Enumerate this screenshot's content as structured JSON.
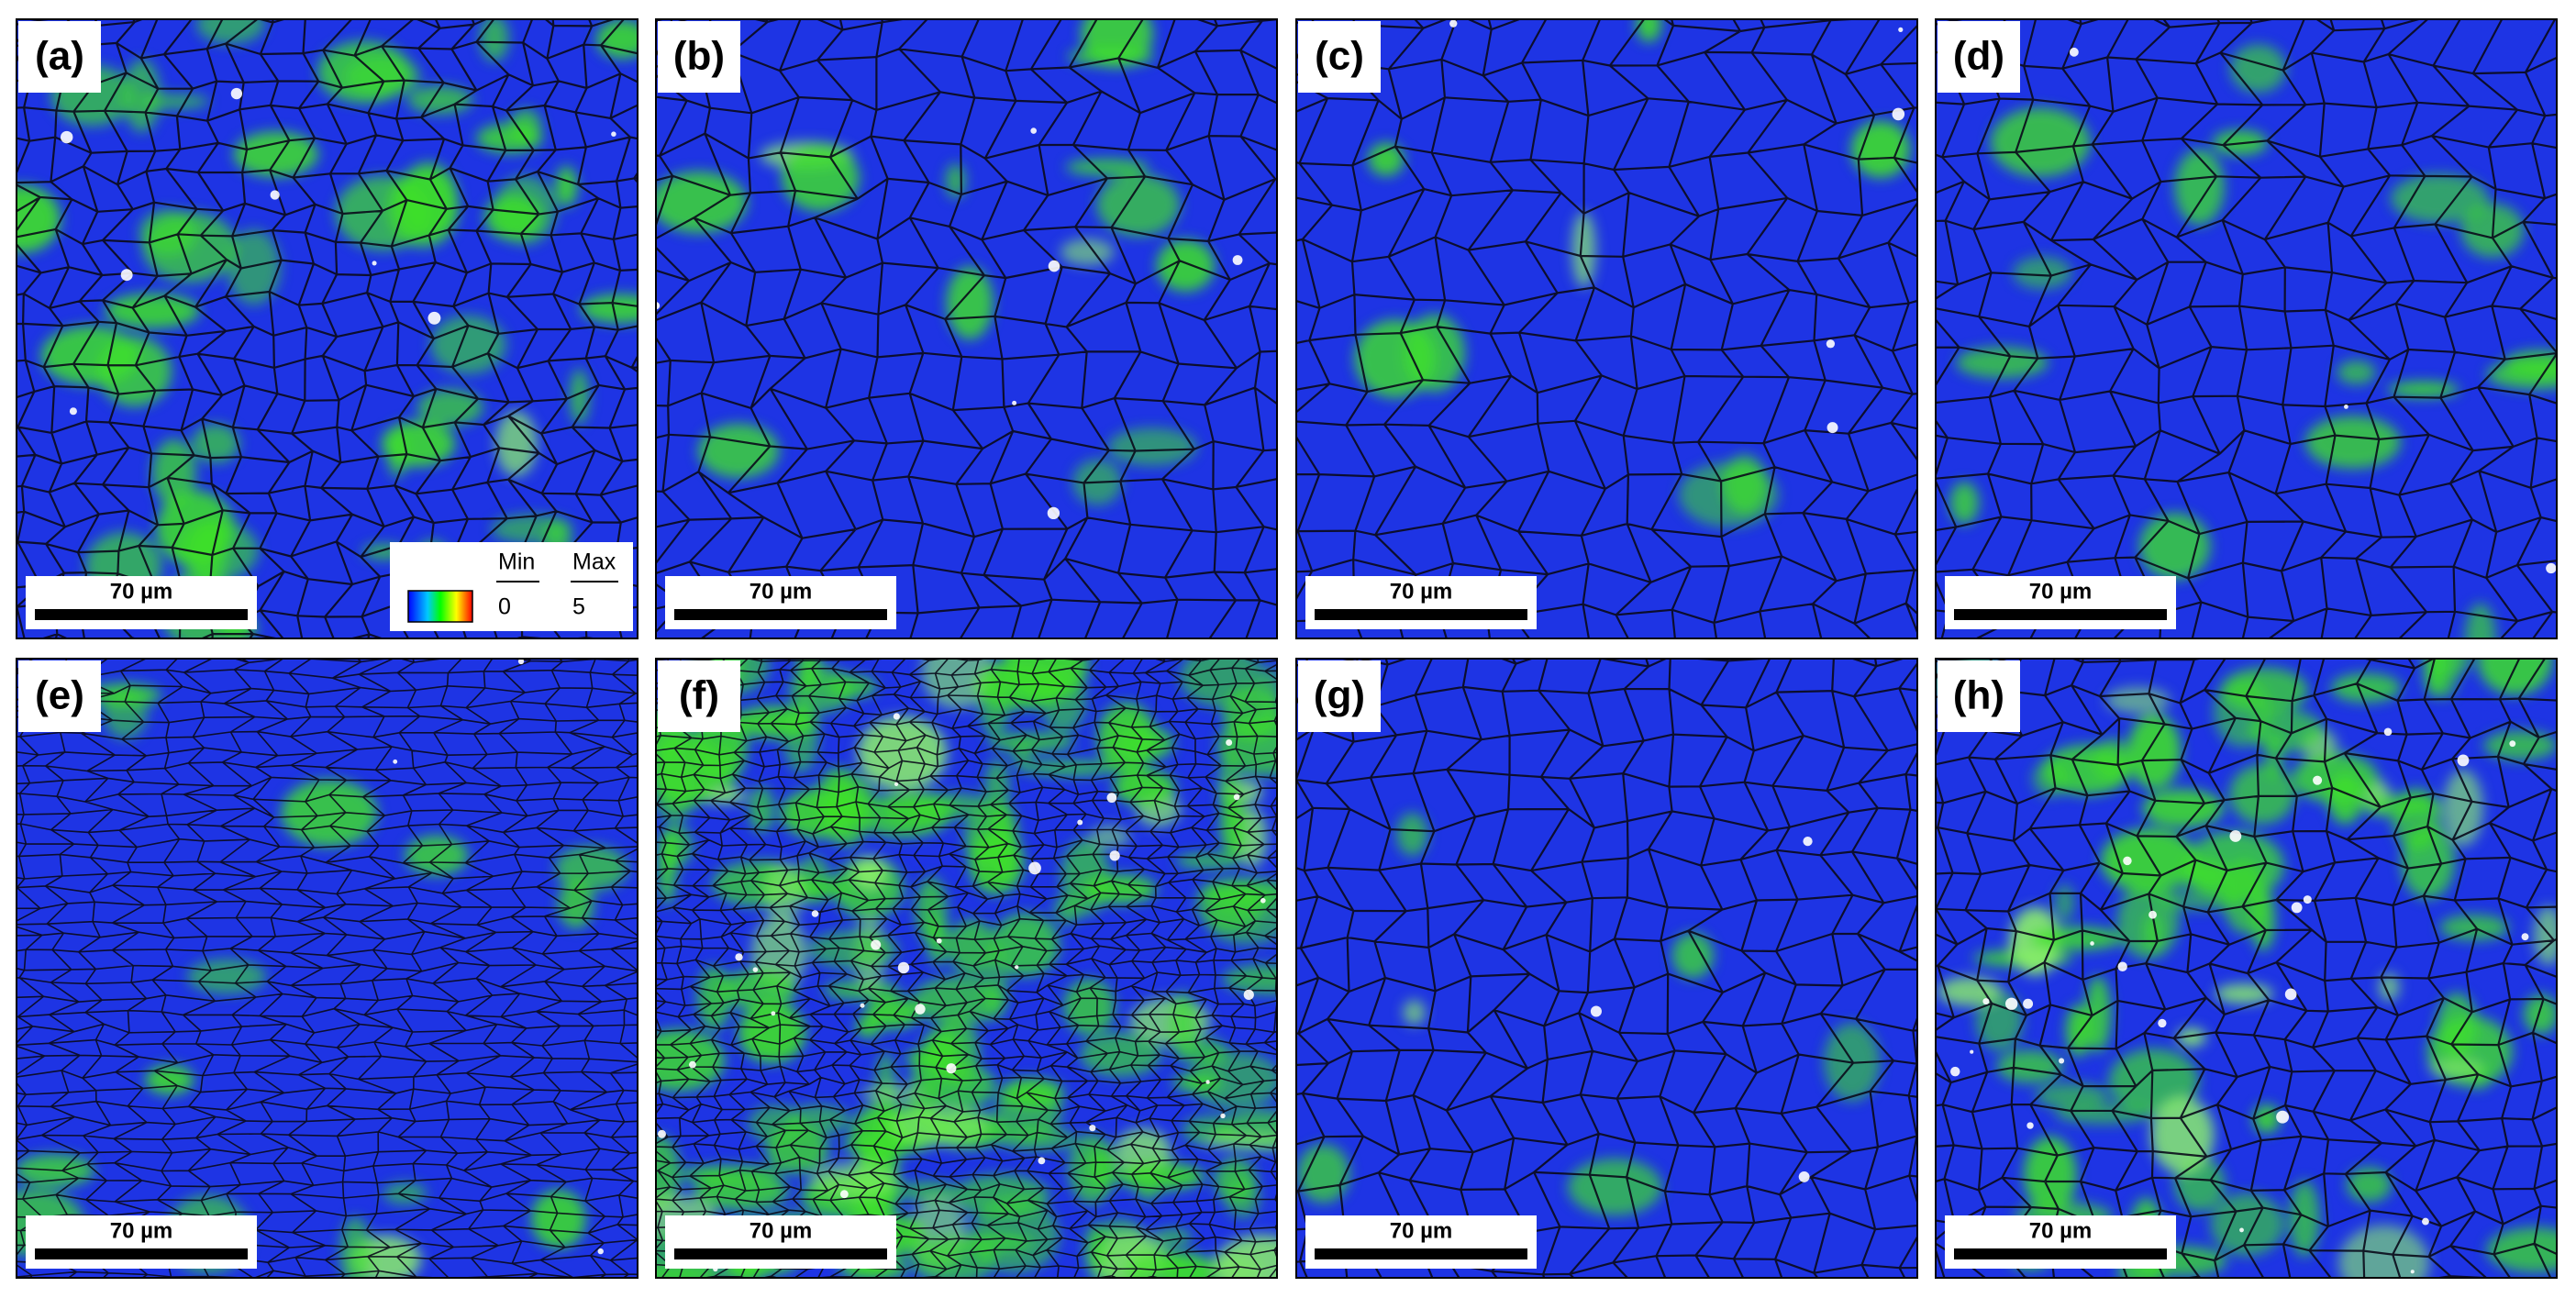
{
  "panels": [
    {
      "label": "(a)",
      "scale_bar": "70 µm",
      "legend": {
        "min_label": "Min",
        "max_label": "Max",
        "min": 0,
        "max": 5
      }
    },
    {
      "label": "(b)",
      "scale_bar": "70 µm"
    },
    {
      "label": "(c)",
      "scale_bar": "70 µm"
    },
    {
      "label": "(d)",
      "scale_bar": "70 µm"
    },
    {
      "label": "(e)",
      "scale_bar": "70 µm"
    },
    {
      "label": "(f)",
      "scale_bar": "70 µm"
    },
    {
      "label": "(g)",
      "scale_bar": "70 µm"
    },
    {
      "label": "(h)",
      "scale_bar": "70 µm"
    }
  ]
}
